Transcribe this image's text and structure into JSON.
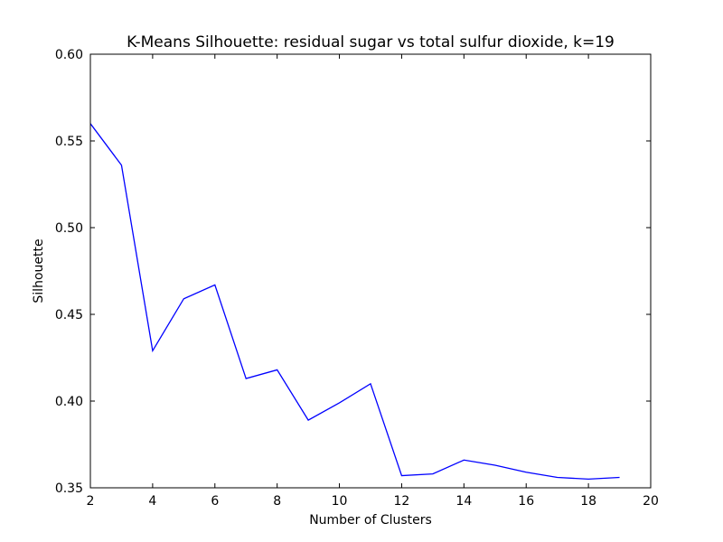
{
  "chart_data": {
    "type": "line",
    "title": "K-Means Silhouette: residual sugar vs total sulfur dioxide, k=19",
    "xlabel": "Number of Clusters",
    "ylabel": "Silhouette",
    "xlim": [
      2,
      20
    ],
    "ylim": [
      0.35,
      0.6
    ],
    "xticks": [
      2,
      4,
      6,
      8,
      10,
      12,
      14,
      16,
      18,
      20
    ],
    "xtick_labels": [
      "2",
      "4",
      "6",
      "8",
      "10",
      "12",
      "14",
      "16",
      "18",
      "20"
    ],
    "yticks": [
      0.35,
      0.4,
      0.45,
      0.5,
      0.55,
      0.6
    ],
    "ytick_labels": [
      "0.35",
      "0.40",
      "0.45",
      "0.50",
      "0.55",
      "0.60"
    ],
    "grid": false,
    "line_color": "#0000ff",
    "x": [
      2,
      3,
      4,
      5,
      6,
      7,
      8,
      9,
      10,
      11,
      12,
      13,
      14,
      15,
      16,
      17,
      18,
      19
    ],
    "y": [
      0.56,
      0.536,
      0.429,
      0.459,
      0.467,
      0.413,
      0.418,
      0.389,
      0.399,
      0.41,
      0.357,
      0.358,
      0.366,
      0.363,
      0.359,
      0.356,
      0.355,
      0.356
    ]
  }
}
